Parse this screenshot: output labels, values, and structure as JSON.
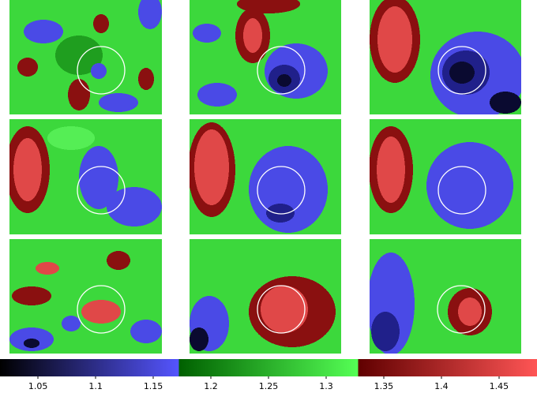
{
  "chart_data": {
    "type": "colorbar",
    "clim": [
      1.017,
      1.483
    ],
    "ticks": [
      1.05,
      1.1,
      1.15,
      1.2,
      1.25,
      1.3,
      1.35,
      1.4,
      1.45
    ],
    "colormap": [
      [
        "#000000",
        "#5555ff"
      ],
      [
        "#006000",
        "#55ff55"
      ],
      [
        "#600000",
        "#ff5555"
      ]
    ]
  }
}
